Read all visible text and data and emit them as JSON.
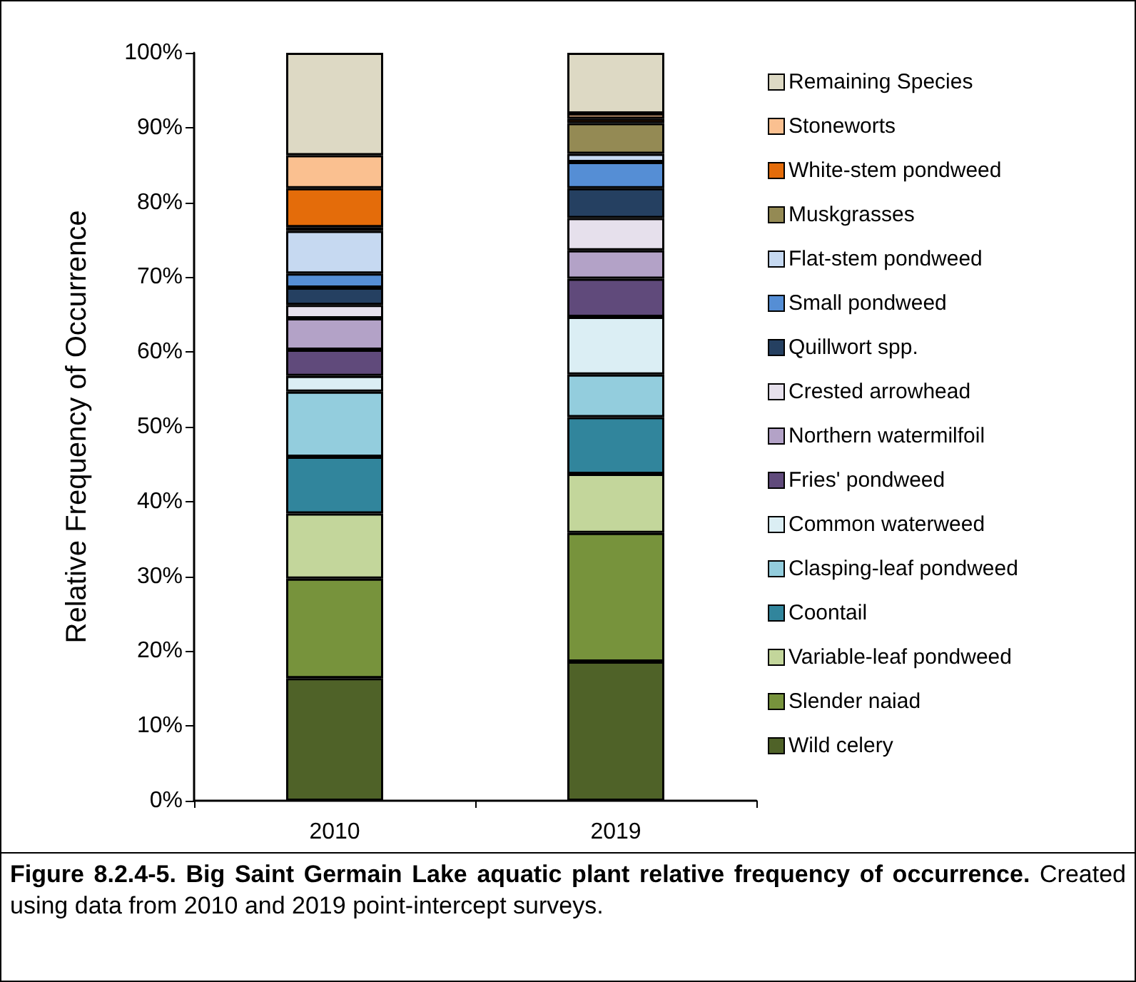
{
  "chart_data": {
    "type": "bar",
    "title": "Figure 8.2.4-5.  Big Saint Germain Lake aquatic plant relative frequency of occurrence.",
    "annotations": [
      "Created using data from 2010 and 2019 point-intercept surveys."
    ],
    "ylabel": "Relative Frequency of Occurrence",
    "categories": [
      "2010",
      "2019"
    ],
    "stacked": true,
    "ylim": [
      0,
      100
    ],
    "yticks": [
      {
        "value": 0,
        "label": "0%"
      },
      {
        "value": 10,
        "label": "10%"
      },
      {
        "value": 20,
        "label": "20%"
      },
      {
        "value": 30,
        "label": "30%"
      },
      {
        "value": 40,
        "label": "40%"
      },
      {
        "value": 50,
        "label": "50%"
      },
      {
        "value": 60,
        "label": "60%"
      },
      {
        "value": 70,
        "label": "70%"
      },
      {
        "value": 80,
        "label": "80%"
      },
      {
        "value": 90,
        "label": "90%"
      },
      {
        "value": 100,
        "label": "100%"
      }
    ],
    "grid": false,
    "legend": "right",
    "series": [
      {
        "name": "Wild celery",
        "color": "#4f6228",
        "values": [
          16.4,
          18.6
        ]
      },
      {
        "name": "Slender naiad",
        "color": "#77933c",
        "values": [
          13.3,
          17.2
        ]
      },
      {
        "name": "Variable-leaf pondweed",
        "color": "#c3d69b",
        "values": [
          8.7,
          7.9
        ]
      },
      {
        "name": "Coontail",
        "color": "#31859c",
        "values": [
          7.6,
          7.6
        ]
      },
      {
        "name": "Clasping-leaf pondweed",
        "color": "#93cddd",
        "values": [
          8.7,
          5.7
        ]
      },
      {
        "name": "Common waterweed",
        "color": "#dbeef4",
        "values": [
          2.1,
          7.7
        ]
      },
      {
        "name": "Fries' pondweed",
        "color": "#604a7b",
        "values": [
          3.5,
          5.1
        ]
      },
      {
        "name": "Northern watermilfoil",
        "color": "#b3a2c7",
        "values": [
          4.2,
          3.8
        ]
      },
      {
        "name": "Crested arrowhead",
        "color": "#e6e0ec",
        "values": [
          1.8,
          4.3
        ]
      },
      {
        "name": "Quillwort spp.",
        "color": "#254061",
        "values": [
          2.3,
          4.0
        ]
      },
      {
        "name": "Small pondweed",
        "color": "#558ed5",
        "values": [
          1.9,
          3.5
        ]
      },
      {
        "name": "Flat-stem pondweed",
        "color": "#c6d9f1",
        "values": [
          5.7,
          1.1
        ]
      },
      {
        "name": "Muskgrasses",
        "color": "#948a54",
        "values": [
          0.5,
          4.1
        ]
      },
      {
        "name": "White-stem pondweed",
        "color": "#e46c0a",
        "values": [
          5.2,
          0.6
        ]
      },
      {
        "name": "Stoneworts",
        "color": "#fac090",
        "values": [
          4.4,
          0.7
        ]
      },
      {
        "name": "Remaining Species",
        "color": "#ddd9c4",
        "values": [
          13.7,
          8.1
        ]
      }
    ]
  }
}
